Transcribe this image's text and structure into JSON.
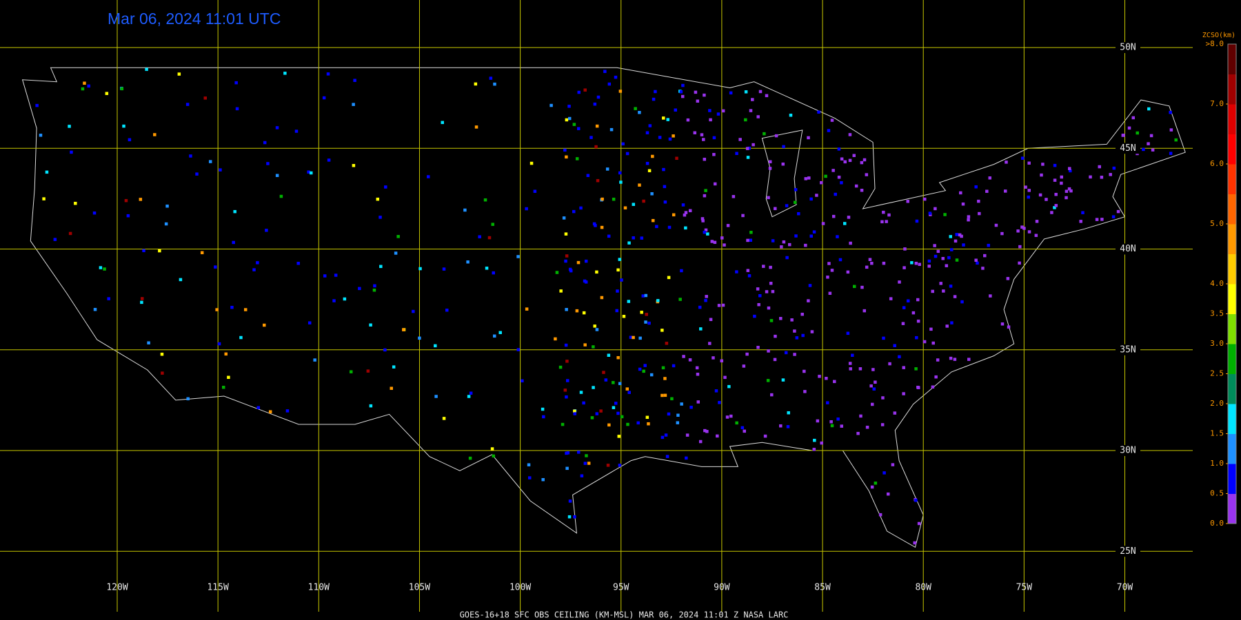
{
  "title": "Mar 06, 2024 11:01 UTC",
  "footer": "GOES-16+18  SFC OBS CEILING (KM-MSL)   MAR 06, 2024 11:01 Z   NASA LARC",
  "map": {
    "grid_color": "#c8c800",
    "longitudes": [
      {
        "value": -120,
        "label": "120W"
      },
      {
        "value": -115,
        "label": "115W"
      },
      {
        "value": -110,
        "label": "110W"
      },
      {
        "value": -105,
        "label": "105W"
      },
      {
        "value": -100,
        "label": "100W"
      },
      {
        "value": -95,
        "label": "95W"
      },
      {
        "value": -90,
        "label": "90W"
      },
      {
        "value": -85,
        "label": "85W"
      },
      {
        "value": -80,
        "label": "80W"
      },
      {
        "value": -75,
        "label": "75W"
      },
      {
        "value": -70,
        "label": "70W"
      }
    ],
    "latitudes": [
      {
        "value": 50,
        "label": "50N"
      },
      {
        "value": 45,
        "label": "45N"
      },
      {
        "value": 40,
        "label": "40N"
      },
      {
        "value": 35,
        "label": "35N"
      },
      {
        "value": 30,
        "label": "30N"
      },
      {
        "value": 25,
        "label": "25N"
      }
    ]
  },
  "legend": {
    "title": "ZCSO(km)",
    "top_label": ">8.0",
    "ticks": [
      {
        "value": 7,
        "label": "7.0"
      },
      {
        "value": 6,
        "label": "6.0"
      },
      {
        "value": 5,
        "label": "5.0"
      },
      {
        "value": 4,
        "label": "4.0"
      },
      {
        "value": 3.5,
        "label": "3.5"
      },
      {
        "value": 3,
        "label": "3.0"
      },
      {
        "value": 2.5,
        "label": "2.5"
      },
      {
        "value": 2,
        "label": "2.0"
      },
      {
        "value": 1.5,
        "label": "1.5"
      },
      {
        "value": 1,
        "label": "1.0"
      },
      {
        "value": 0.5,
        "label": "0.5"
      },
      {
        "value": 0,
        "label": "0.0"
      }
    ],
    "range": [
      0,
      8
    ],
    "colors": [
      "#9933ee",
      "#0000ff",
      "#1e90ff",
      "#00e5ff",
      "#008b5a",
      "#00b000",
      "#80e000",
      "#ffff00",
      "#ffcc00",
      "#ff9900",
      "#ff6600",
      "#ff3300",
      "#ff0000",
      "#dd0000",
      "#a00000",
      "#600000"
    ]
  }
}
